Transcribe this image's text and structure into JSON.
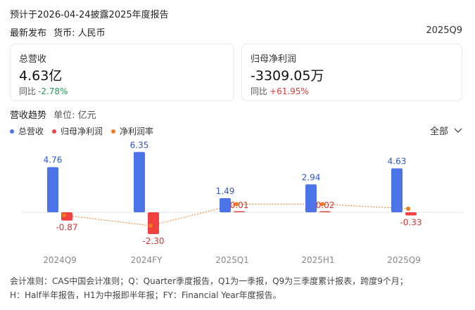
{
  "header": {
    "notice": "预计于2026-04-24披露2025年度报告",
    "release": "最新发布",
    "currency": "货币: 人民币",
    "period": "2025Q9"
  },
  "cards": [
    {
      "label": "总营收",
      "value": "4.63亿",
      "yoy_label": "同比",
      "yoy_value": "-2.78%"
    },
    {
      "label": "归母净利润",
      "value": "-3309.05万",
      "yoy_label": "同比",
      "yoy_value": "+61.95%"
    }
  ],
  "trend": {
    "title": "营收趋势",
    "unit": "单位: 亿元"
  },
  "legend": [
    {
      "name": "总营收",
      "color": "#4d73e8"
    },
    {
      "name": "归母净利润",
      "color": "#f04040"
    },
    {
      "name": "净利润率",
      "color": "#f07a1e"
    }
  ],
  "filter": {
    "label": "全部",
    "icon": "chevron-down-icon"
  },
  "chart_data": {
    "type": "bar",
    "categories": [
      "2024Q9",
      "2024FY",
      "2025Q1",
      "2025H1",
      "2025Q9"
    ],
    "series": [
      {
        "name": "总营收",
        "values": [
          4.76,
          6.35,
          1.49,
          2.94,
          4.63
        ],
        "labels": [
          "4.76",
          "6.35",
          "1.49",
          "2.94",
          "4.63"
        ]
      },
      {
        "name": "归母净利润",
        "values": [
          -0.87,
          -2.3,
          0.01,
          0.02,
          -0.33
        ],
        "labels": [
          "-0.87",
          "-2.30",
          "0.01",
          "0.02",
          "-0.33"
        ]
      }
    ],
    "line_series": {
      "name": "净利润率",
      "values": [
        -18.3,
        -36.2,
        0.7,
        0.7,
        -7.1
      ]
    },
    "colors": {
      "revenue": "#4d73e8",
      "profit": "#f04040",
      "margin": "#f07a1e"
    }
  },
  "footnote": {
    "line1": "会计准则：CAS中国会计准则；Q：Quarter季度报告，Q1为一季报，Q9为三季度累计报表，跨度9个月；",
    "line2": "H：Half半年报告，H1为中报即半年报；FY：Financial Year年度报告。"
  }
}
